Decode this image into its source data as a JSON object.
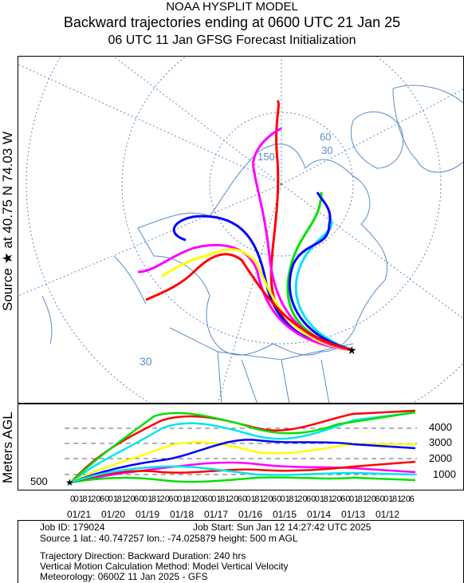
{
  "header": {
    "line1": "NOAA HYSPLIT MODEL",
    "line2": "Backward trajectories ending at 0600 UTC 21 Jan 25",
    "line3": "06 UTC 11 Jan    GFSG  Forecast Initialization"
  },
  "side": {
    "source_label": "Source ★  at   40.75 N   74.03 W",
    "meters_label": "Meters AGL"
  },
  "map": {
    "grid_labels": [
      "30",
      "60",
      "150",
      "30"
    ],
    "source_marker": "star-icon",
    "colors": {
      "red": "#ff0000",
      "blue": "#0000ff",
      "green": "#00e000",
      "cyan": "#00e5ee",
      "magenta": "#ff00ff",
      "yellow": "#ffff00",
      "coast": "#5a8cc8"
    }
  },
  "height_panel": {
    "start_height": "500",
    "altitude_labels": [
      "4000",
      "3000",
      "2000",
      "1000"
    ],
    "hour_ticks": "00 18 12 06 00 18 12 06 00 18 12 06 00 18 12 06 00 18 12 06 00 18 12 06 00 18 12 06 00 18 12 06 00 18 12 06 00 18 12 06",
    "dates": [
      "01/21",
      "01/20",
      "01/19",
      "01/18",
      "01/17",
      "01/16",
      "01/15",
      "01/14",
      "01/13",
      "01/12"
    ]
  },
  "info": {
    "job_id": "Job ID: 179024",
    "job_start": "Job Start: Sun Jan 12 14:27:42 UTC 2025",
    "source": "Source 1      lat.: 40.747257      lon.: -74.025879      height: 500 m AGL",
    "direction": "Trajectory Direction: Backward       Duration: 240 hrs",
    "vertical": "Vertical Motion Calculation Method:         Model Vertical Velocity",
    "meteorology": "Meteorology: 0600Z 11 Jan 2025 - GFS"
  }
}
